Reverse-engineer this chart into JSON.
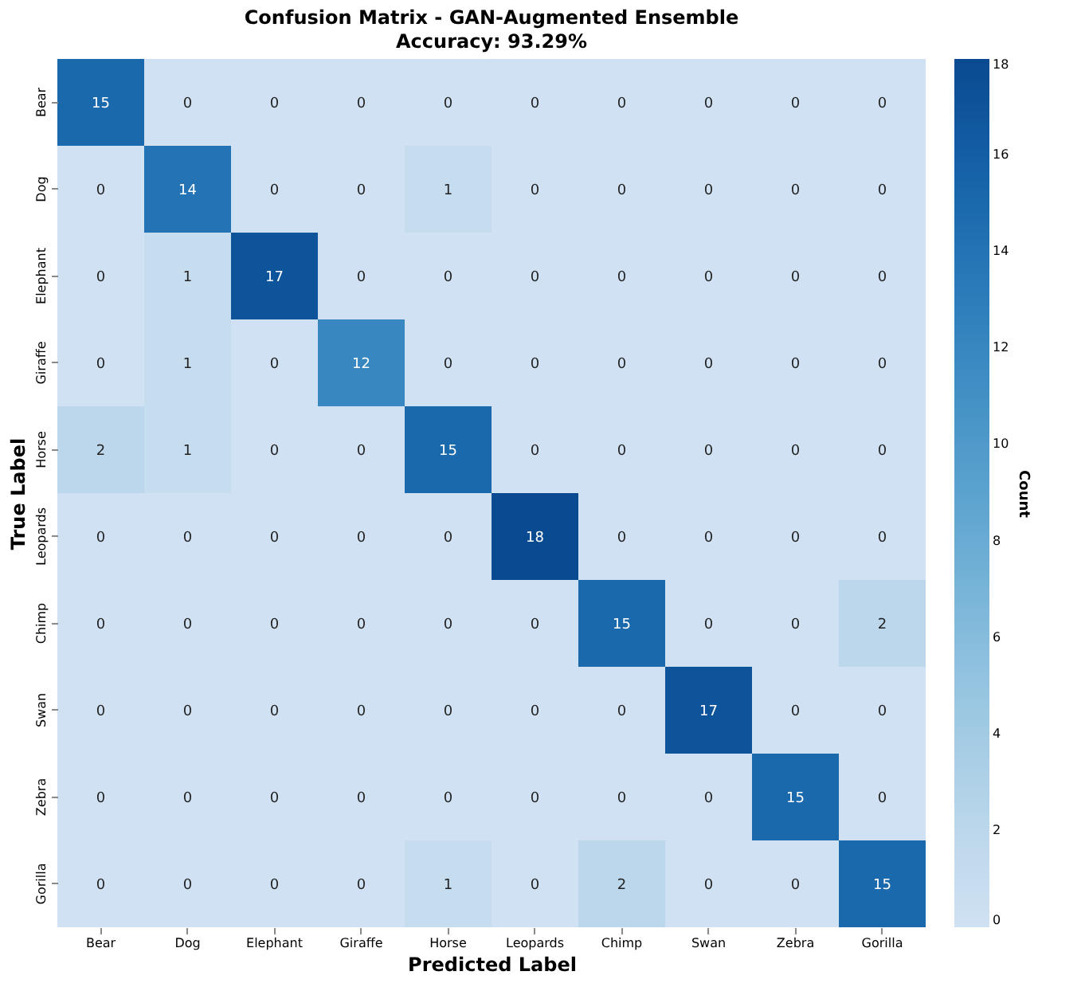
{
  "chart_data": {
    "type": "heatmap",
    "title": "Confusion Matrix - GAN-Augmented Ensemble",
    "subtitle": "Accuracy: 93.29%",
    "xlabel": "Predicted Label",
    "ylabel": "True Label",
    "clabel": "Count",
    "categories": [
      "Bear",
      "Dog",
      "Elephant",
      "Giraffe",
      "Horse",
      "Leopards",
      "Chimp",
      "Swan",
      "Zebra",
      "Gorilla"
    ],
    "y_categories": [
      "Bear",
      "Dog",
      "Elephant",
      "Giraffe",
      "Horse",
      "Leopards",
      "Chimp",
      "Swan",
      "Zebra",
      "Gorilla"
    ],
    "cells": [
      [
        15,
        0,
        0,
        0,
        0,
        0,
        0,
        0,
        0,
        0
      ],
      [
        0,
        14,
        0,
        0,
        1,
        0,
        0,
        0,
        0,
        0
      ],
      [
        0,
        1,
        17,
        0,
        0,
        0,
        0,
        0,
        0,
        0
      ],
      [
        0,
        1,
        0,
        12,
        0,
        0,
        0,
        0,
        0,
        0
      ],
      [
        2,
        1,
        0,
        0,
        15,
        0,
        0,
        0,
        0,
        0
      ],
      [
        0,
        0,
        0,
        0,
        0,
        18,
        0,
        0,
        0,
        0
      ],
      [
        0,
        0,
        0,
        0,
        0,
        0,
        15,
        0,
        0,
        2
      ],
      [
        0,
        0,
        0,
        0,
        0,
        0,
        0,
        17,
        0,
        0
      ],
      [
        0,
        0,
        0,
        0,
        0,
        0,
        0,
        0,
        15,
        0
      ],
      [
        0,
        0,
        0,
        0,
        1,
        0,
        2,
        0,
        0,
        15
      ]
    ],
    "clim": [
      0,
      18
    ],
    "cticks": [
      0,
      2,
      4,
      6,
      8,
      10,
      12,
      14,
      16,
      18
    ],
    "data_labels": true
  }
}
